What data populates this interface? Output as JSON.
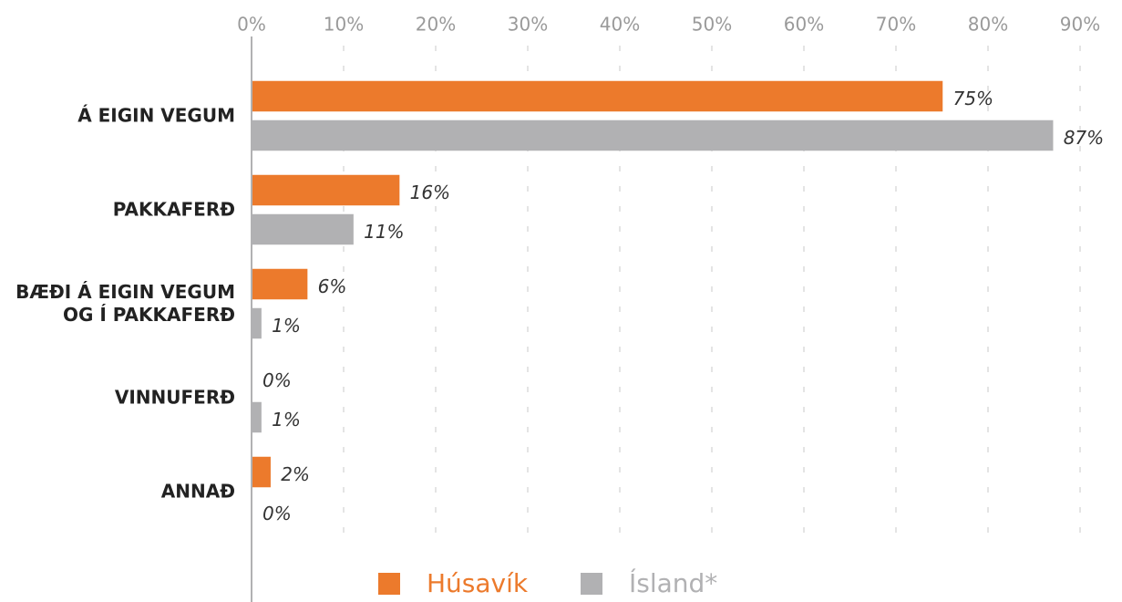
{
  "chart_data": {
    "type": "hbar",
    "categories": [
      "Á EIGIN VEGUM",
      "PAKKAFERÐ",
      "BÆÐI Á EIGIN VEGUM OG Í PAKKAFERÐ",
      "VINNUFERÐ",
      "ANNAÐ"
    ],
    "series": [
      {
        "name": "Húsavík",
        "color": "#ec7a2c",
        "values": [
          75,
          16,
          6,
          0,
          2
        ],
        "value_labels": [
          "75%",
          "16%",
          "6%",
          "0%",
          "2%"
        ]
      },
      {
        "name": "Ísland*",
        "color": "#b1b1b3",
        "values": [
          87,
          11,
          1,
          1,
          0
        ],
        "value_labels": [
          "87%",
          "11%",
          "1%",
          "1%",
          "0%"
        ]
      }
    ],
    "xlim": [
      0,
      90
    ],
    "xticks": [
      {
        "value": 0,
        "label": "0%"
      },
      {
        "value": 10,
        "label": "10%"
      },
      {
        "value": 20,
        "label": "20%"
      },
      {
        "value": 30,
        "label": "30%"
      },
      {
        "value": 40,
        "label": "40%"
      },
      {
        "value": 50,
        "label": "50%"
      },
      {
        "value": 60,
        "label": "60%"
      },
      {
        "value": 70,
        "label": "70%"
      },
      {
        "value": 80,
        "label": "80%"
      },
      {
        "value": 90,
        "label": "90%"
      }
    ],
    "grid": true,
    "legend": "bottom"
  }
}
